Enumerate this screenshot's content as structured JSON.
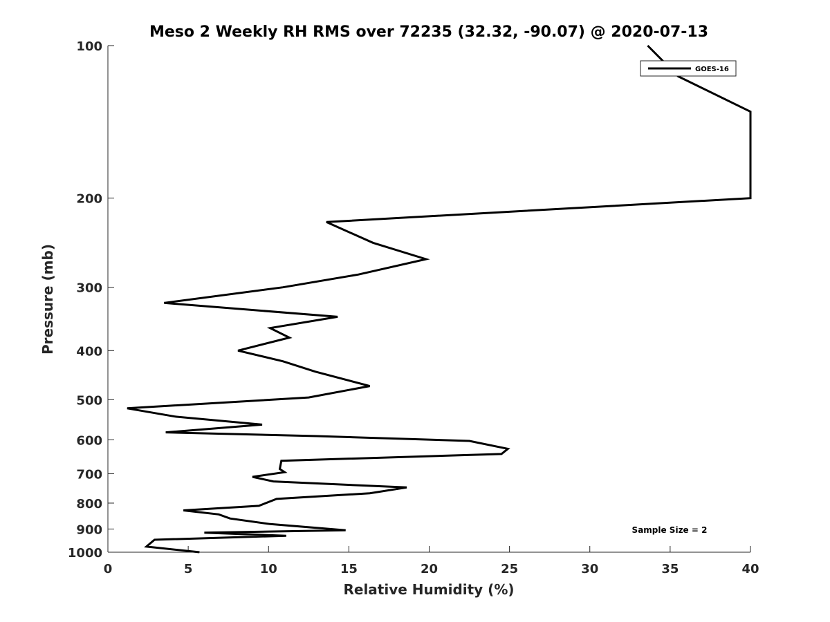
{
  "chart_data": {
    "type": "line",
    "title": "Meso 2 Weekly RH RMS over 72235 (32.32, -90.07) @ 2020-07-13",
    "xlabel": "Relative Humidity (%)",
    "ylabel": "Pressure (mb)",
    "xlim": [
      0,
      40
    ],
    "ylim": [
      100,
      1000
    ],
    "yscale": "log",
    "grid": false,
    "legend_position": "top-right",
    "x_ticks": [
      0,
      5,
      10,
      15,
      20,
      25,
      30,
      35,
      40
    ],
    "x_tick_labels": [
      "0",
      "5",
      "10",
      "15",
      "20",
      "25",
      "30",
      "35",
      "40"
    ],
    "y_ticks": [
      100,
      200,
      300,
      400,
      500,
      600,
      700,
      800,
      900,
      1000
    ],
    "y_tick_labels": [
      "100",
      "200",
      "300",
      "400",
      "500",
      "600",
      "700",
      "800",
      "900",
      "1000"
    ],
    "annotation": "Sample Size = 2",
    "series": [
      {
        "name": "GOES-16",
        "color": "#000000",
        "x": [
          33.6,
          35.5,
          40.0,
          40.0,
          13.6,
          16.5,
          19.8,
          15.6,
          10.9,
          3.5,
          14.3,
          10.1,
          11.3,
          8.1,
          10.9,
          12.9,
          16.3,
          12.5,
          1.2,
          4.2,
          9.6,
          3.6,
          13.0,
          22.5,
          24.9,
          24.5,
          10.8,
          10.7,
          11.0,
          9.0,
          10.3,
          18.6,
          16.3,
          10.5,
          9.4,
          4.7,
          6.9,
          7.6,
          10.1,
          14.8,
          6.0,
          11.1,
          2.9,
          2.4,
          5.7
        ],
        "y": [
          100,
          115,
          135,
          200,
          223,
          245,
          264,
          283,
          300,
          322,
          343,
          361,
          377,
          400,
          420,
          440,
          470,
          495,
          520,
          540,
          560,
          580,
          590,
          603,
          625,
          640,
          660,
          685,
          695,
          710,
          725,
          745,
          765,
          785,
          810,
          827,
          842,
          858,
          880,
          905,
          915,
          928,
          945,
          975,
          1000
        ]
      }
    ]
  }
}
